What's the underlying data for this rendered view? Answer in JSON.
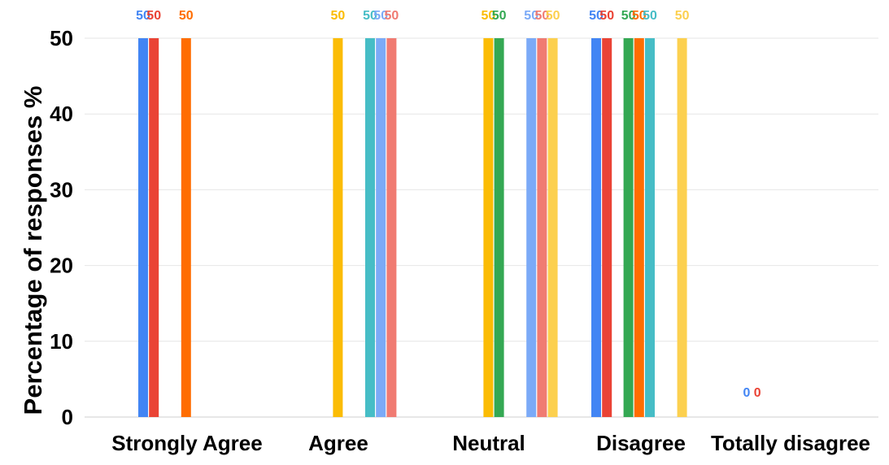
{
  "chart_data": {
    "type": "bar",
    "title": "",
    "xlabel": "",
    "ylabel": "Percentage of responses %",
    "ylim": [
      0,
      50
    ],
    "yticks": [
      0,
      10,
      20,
      30,
      40,
      50
    ],
    "grid": true,
    "legend": "none",
    "categories": [
      "Strongly Agree",
      "Agree",
      "Neutral",
      "Disagree",
      "Totally disagree"
    ],
    "series": [
      {
        "color": "#4285F4",
        "values": [
          50,
          null,
          null,
          50,
          0
        ]
      },
      {
        "color": "#EA4335",
        "values": [
          50,
          null,
          null,
          50,
          0
        ]
      },
      {
        "color": "#FBBC04",
        "values": [
          null,
          50,
          50,
          null,
          null
        ]
      },
      {
        "color": "#34A853",
        "values": [
          null,
          null,
          50,
          50,
          null
        ]
      },
      {
        "color": "#FF6D01",
        "values": [
          50,
          null,
          null,
          50,
          null
        ]
      },
      {
        "color": "#46BDC6",
        "values": [
          null,
          50,
          null,
          50,
          null
        ]
      },
      {
        "color": "#7BAAF7",
        "values": [
          null,
          50,
          50,
          null,
          null
        ]
      },
      {
        "color": "#F07B72",
        "values": [
          null,
          50,
          50,
          null,
          null
        ]
      },
      {
        "color": "#FCD04F",
        "values": [
          null,
          null,
          50,
          50,
          null
        ]
      }
    ]
  }
}
